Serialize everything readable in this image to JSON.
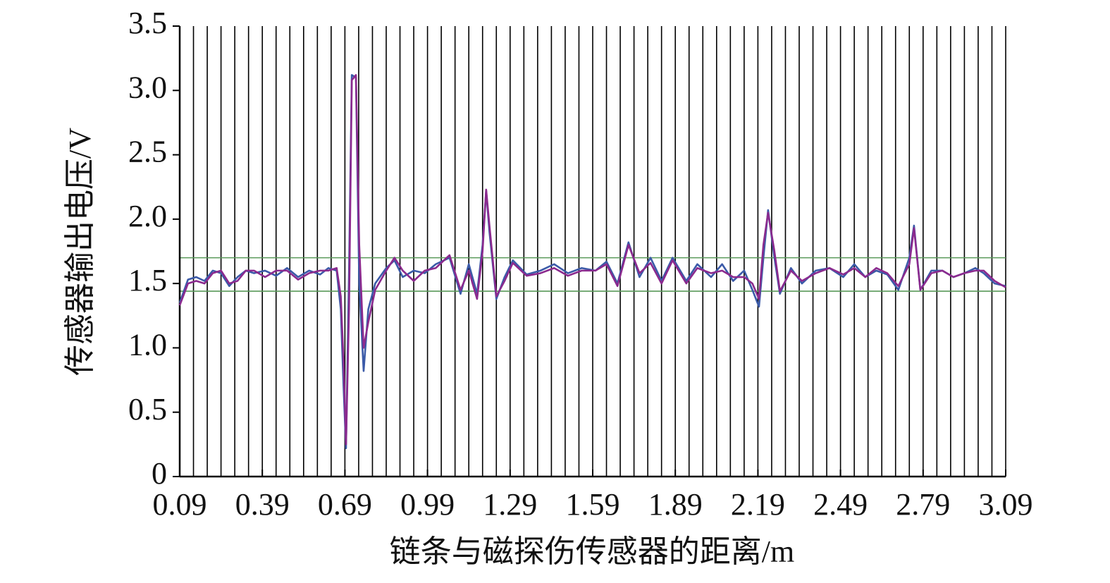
{
  "chart_data": {
    "type": "line",
    "xlabel": "链条与磁探伤传感器的距离/m",
    "ylabel": "传感器输出电压/V",
    "x": [
      0.09,
      0.12,
      0.15,
      0.18,
      0.21,
      0.24,
      0.27,
      0.3,
      0.33,
      0.36,
      0.4,
      0.44,
      0.48,
      0.52,
      0.56,
      0.6,
      0.63,
      0.66,
      0.675,
      0.685,
      0.694,
      0.705,
      0.715,
      0.73,
      0.742,
      0.758,
      0.775,
      0.8,
      0.84,
      0.87,
      0.9,
      0.94,
      0.98,
      1.02,
      1.07,
      1.11,
      1.14,
      1.17,
      1.19,
      1.203,
      1.215,
      1.24,
      1.27,
      1.3,
      1.35,
      1.4,
      1.45,
      1.5,
      1.55,
      1.6,
      1.64,
      1.68,
      1.72,
      1.76,
      1.8,
      1.84,
      1.88,
      1.93,
      1.97,
      2.02,
      2.06,
      2.1,
      2.14,
      2.17,
      2.194,
      2.21,
      2.227,
      2.25,
      2.27,
      2.31,
      2.35,
      2.4,
      2.45,
      2.5,
      2.54,
      2.58,
      2.62,
      2.66,
      2.7,
      2.74,
      2.757,
      2.78,
      2.82,
      2.86,
      2.9,
      2.94,
      2.98,
      3.01,
      3.05,
      3.09
    ],
    "series": [
      {
        "color": "#3b5aa8",
        "values": [
          1.35,
          1.53,
          1.55,
          1.52,
          1.6,
          1.58,
          1.48,
          1.55,
          1.6,
          1.58,
          1.6,
          1.56,
          1.62,
          1.55,
          1.6,
          1.57,
          1.62,
          1.6,
          1.3,
          0.7,
          0.22,
          1.6,
          3.12,
          3.1,
          1.5,
          0.82,
          1.3,
          1.5,
          1.62,
          1.68,
          1.55,
          1.6,
          1.58,
          1.65,
          1.7,
          1.42,
          1.65,
          1.42,
          1.8,
          2.22,
          1.9,
          1.38,
          1.55,
          1.68,
          1.57,
          1.6,
          1.65,
          1.58,
          1.62,
          1.6,
          1.67,
          1.5,
          1.82,
          1.55,
          1.7,
          1.52,
          1.7,
          1.52,
          1.65,
          1.55,
          1.65,
          1.52,
          1.6,
          1.45,
          1.32,
          1.7,
          2.07,
          1.7,
          1.42,
          1.62,
          1.5,
          1.6,
          1.62,
          1.55,
          1.65,
          1.55,
          1.6,
          1.57,
          1.45,
          1.7,
          1.95,
          1.45,
          1.6,
          1.6,
          1.55,
          1.58,
          1.62,
          1.58,
          1.5,
          1.48
        ]
      },
      {
        "color": "#8b2a8e",
        "values": [
          1.33,
          1.5,
          1.52,
          1.5,
          1.58,
          1.6,
          1.5,
          1.52,
          1.6,
          1.6,
          1.55,
          1.6,
          1.6,
          1.53,
          1.58,
          1.6,
          1.6,
          1.62,
          1.4,
          0.9,
          0.25,
          1.3,
          3.08,
          3.12,
          1.8,
          1.0,
          1.2,
          1.45,
          1.6,
          1.7,
          1.6,
          1.52,
          1.6,
          1.62,
          1.72,
          1.45,
          1.6,
          1.38,
          1.75,
          2.23,
          1.95,
          1.4,
          1.52,
          1.66,
          1.56,
          1.58,
          1.62,
          1.56,
          1.6,
          1.6,
          1.65,
          1.48,
          1.8,
          1.58,
          1.66,
          1.5,
          1.68,
          1.5,
          1.62,
          1.58,
          1.6,
          1.55,
          1.55,
          1.5,
          1.38,
          1.8,
          2.05,
          1.75,
          1.44,
          1.6,
          1.52,
          1.58,
          1.62,
          1.57,
          1.62,
          1.55,
          1.62,
          1.58,
          1.48,
          1.65,
          1.93,
          1.45,
          1.58,
          1.6,
          1.55,
          1.58,
          1.6,
          1.6,
          1.52,
          1.47
        ]
      }
    ],
    "hlines": [
      1.7,
      1.44
    ],
    "hline_color": "#5a9a5a",
    "vlines": [
      0.14,
      0.19,
      0.24,
      0.29,
      0.34,
      0.39,
      0.44,
      0.49,
      0.54,
      0.59,
      0.64,
      0.69,
      0.74,
      0.79,
      0.84,
      0.89,
      0.94,
      0.99,
      1.04,
      1.09,
      1.14,
      1.19,
      1.24,
      1.29,
      1.34,
      1.39,
      1.44,
      1.49,
      1.54,
      1.59,
      1.64,
      1.69,
      1.74,
      1.79,
      1.84,
      1.89,
      1.94,
      1.99,
      2.04,
      2.09,
      2.14,
      2.19,
      2.24,
      2.29,
      2.34,
      2.39,
      2.44,
      2.49,
      2.54,
      2.59,
      2.64,
      2.69,
      2.74,
      2.79,
      2.84,
      2.89,
      2.94,
      2.99,
      3.04,
      3.09
    ],
    "vline_color": "#000000",
    "xlim": [
      0.09,
      3.09
    ],
    "xticks": [
      0.09,
      0.39,
      0.69,
      0.99,
      1.29,
      1.59,
      1.89,
      2.19,
      2.49,
      2.79,
      3.09
    ],
    "ylim": [
      0,
      3.5
    ],
    "yticks": [
      0,
      0.5,
      {
        "value": 1,
        "label": "1.0"
      },
      1.5,
      {
        "value": 2,
        "label": "2.0"
      },
      2.5,
      {
        "value": 3,
        "label": "3.0"
      },
      3.5
    ]
  }
}
